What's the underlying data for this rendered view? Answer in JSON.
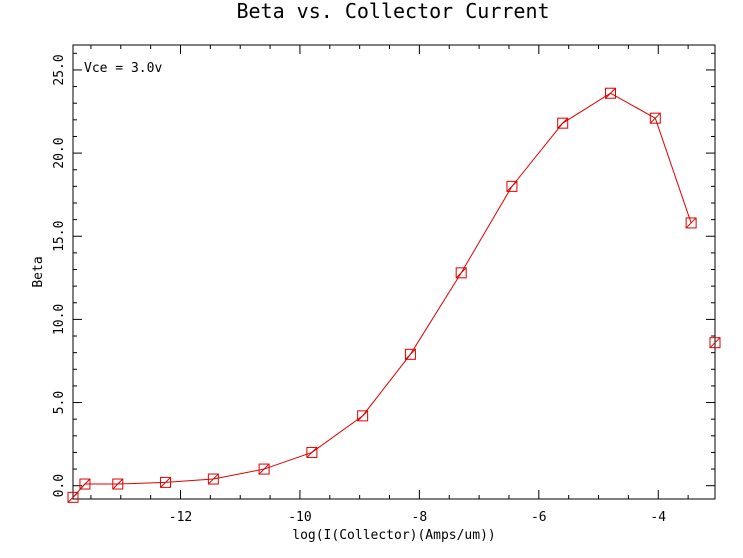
{
  "chart_data": {
    "type": "line",
    "title": "Beta vs. Collector Current",
    "xlabel": "log(I(Collector)(Amps/um))",
    "ylabel": "Beta",
    "annotation": "Vce = 3.0v",
    "xlim": [
      -13.8,
      -3.05
    ],
    "ylim": [
      -0.8,
      26.5
    ],
    "x_ticks": [
      -12,
      -10,
      -8,
      -6,
      -4
    ],
    "x_tick_labels": [
      "-12",
      "-10",
      "-8",
      "-6",
      "-4"
    ],
    "y_ticks": [
      0,
      5,
      10,
      15,
      20,
      25
    ],
    "y_tick_labels": [
      "0.0",
      "5.0",
      "10.0",
      "15.0",
      "20.0",
      "25.0"
    ],
    "grid": false,
    "line_color": "#dd0000",
    "marker": "square-with-diagonal",
    "series": [
      {
        "x": [
          -13.8,
          -13.6,
          -13.05,
          -12.25,
          -11.45,
          -10.6,
          -9.8,
          -8.95,
          -8.15,
          -7.3,
          -6.45,
          -5.6,
          -4.8,
          -4.05,
          -3.45,
          -3.05
        ],
        "y": [
          -0.7,
          0.1,
          0.1,
          0.2,
          0.4,
          1.0,
          2.0,
          4.2,
          7.9,
          12.8,
          18.0,
          21.8,
          23.6,
          22.1,
          15.8,
          8.6
        ]
      }
    ]
  }
}
